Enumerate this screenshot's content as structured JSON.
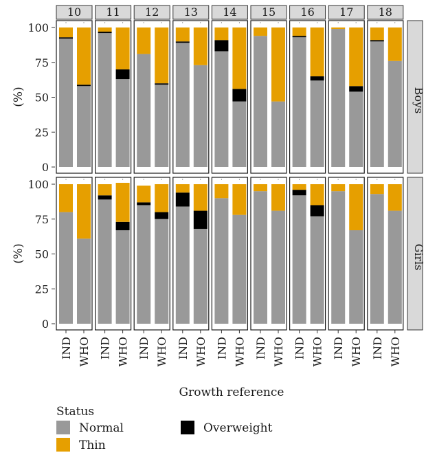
{
  "chart_data": {
    "type": "bar",
    "stacked": true,
    "ylabel": "(%)",
    "xlabel": "Growth reference",
    "ylim": [
      0,
      100
    ],
    "yticks": [
      0,
      25,
      50,
      75,
      100
    ],
    "ages": [
      "10",
      "11",
      "12",
      "13",
      "14",
      "15",
      "16",
      "17",
      "18"
    ],
    "references": [
      "IND",
      "WHO"
    ],
    "legend": {
      "title": "Status",
      "items": [
        {
          "key": "normal",
          "label": "Normal",
          "color": "#999999"
        },
        {
          "key": "overweight",
          "label": "Overweight",
          "color": "#000000"
        },
        {
          "key": "thin",
          "label": "Thin",
          "color": "#E69F00"
        }
      ]
    },
    "stack_order": [
      "normal",
      "overweight",
      "thin"
    ],
    "panels": [
      {
        "label": "Boys",
        "bars": {
          "10": {
            "IND": {
              "normal": 92,
              "overweight": 1,
              "thin": 7
            },
            "WHO": {
              "normal": 58,
              "overweight": 1,
              "thin": 41
            }
          },
          "11": {
            "IND": {
              "normal": 96,
              "overweight": 1,
              "thin": 3
            },
            "WHO": {
              "normal": 63,
              "overweight": 7,
              "thin": 30
            }
          },
          "12": {
            "IND": {
              "normal": 81,
              "overweight": 0,
              "thin": 19
            },
            "WHO": {
              "normal": 59,
              "overweight": 1,
              "thin": 40
            }
          },
          "13": {
            "IND": {
              "normal": 89,
              "overweight": 1,
              "thin": 10
            },
            "WHO": {
              "normal": 73,
              "overweight": 0,
              "thin": 27
            }
          },
          "14": {
            "IND": {
              "normal": 83,
              "overweight": 8,
              "thin": 9
            },
            "WHO": {
              "normal": 47,
              "overweight": 9,
              "thin": 44
            }
          },
          "15": {
            "IND": {
              "normal": 94,
              "overweight": 0,
              "thin": 6
            },
            "WHO": {
              "normal": 47,
              "overweight": 0,
              "thin": 53
            }
          },
          "16": {
            "IND": {
              "normal": 93,
              "overweight": 1,
              "thin": 6
            },
            "WHO": {
              "normal": 62,
              "overweight": 3,
              "thin": 35
            }
          },
          "17": {
            "IND": {
              "normal": 99,
              "overweight": 0,
              "thin": 1
            },
            "WHO": {
              "normal": 54,
              "overweight": 4,
              "thin": 42
            }
          },
          "18": {
            "IND": {
              "normal": 90,
              "overweight": 1,
              "thin": 9
            },
            "WHO": {
              "normal": 76,
              "overweight": 0,
              "thin": 24
            }
          }
        }
      },
      {
        "label": "Girls",
        "bars": {
          "10": {
            "IND": {
              "normal": 80,
              "overweight": 0,
              "thin": 20
            },
            "WHO": {
              "normal": 61,
              "overweight": 0,
              "thin": 39
            }
          },
          "11": {
            "IND": {
              "normal": 89,
              "overweight": 3,
              "thin": 8
            },
            "WHO": {
              "normal": 67,
              "overweight": 6,
              "thin": 28
            }
          },
          "12": {
            "IND": {
              "normal": 85,
              "overweight": 2,
              "thin": 12
            },
            "WHO": {
              "normal": 75,
              "overweight": 5,
              "thin": 20
            }
          },
          "13": {
            "IND": {
              "normal": 84,
              "overweight": 10,
              "thin": 6
            },
            "WHO": {
              "normal": 68,
              "overweight": 13,
              "thin": 19
            }
          },
          "14": {
            "IND": {
              "normal": 90,
              "overweight": 0,
              "thin": 10
            },
            "WHO": {
              "normal": 78,
              "overweight": 0,
              "thin": 22
            }
          },
          "15": {
            "IND": {
              "normal": 95,
              "overweight": 0,
              "thin": 5
            },
            "WHO": {
              "normal": 81,
              "overweight": 0,
              "thin": 19
            }
          },
          "16": {
            "IND": {
              "normal": 92,
              "overweight": 4,
              "thin": 4
            },
            "WHO": {
              "normal": 77,
              "overweight": 8,
              "thin": 15
            }
          },
          "17": {
            "IND": {
              "normal": 95,
              "overweight": 0,
              "thin": 5
            },
            "WHO": {
              "normal": 67,
              "overweight": 0,
              "thin": 33
            }
          },
          "18": {
            "IND": {
              "normal": 93,
              "overweight": 0,
              "thin": 7
            },
            "WHO": {
              "normal": 81,
              "overweight": 0,
              "thin": 19
            }
          }
        }
      }
    ]
  }
}
